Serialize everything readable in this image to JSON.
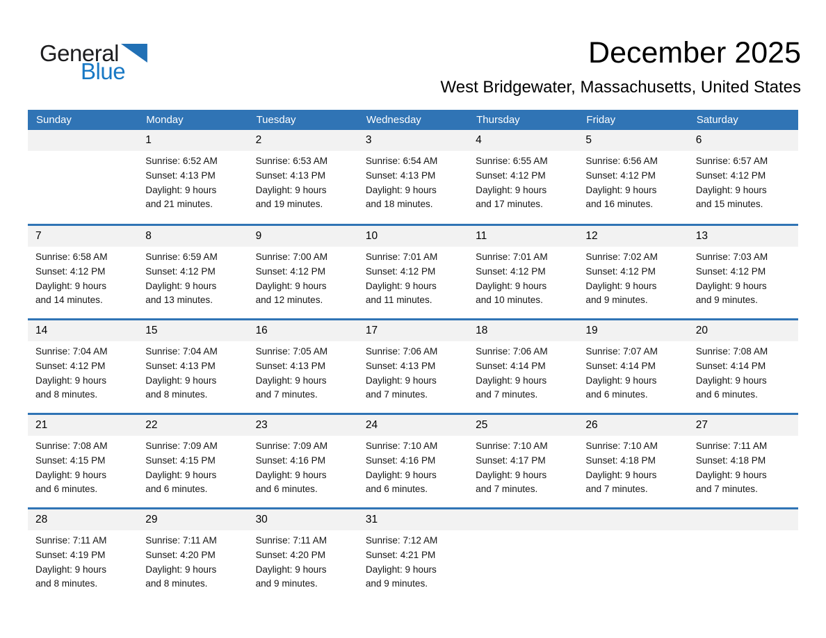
{
  "logo": {
    "general": "General",
    "blue": "Blue"
  },
  "header": {
    "title": "December 2025",
    "subtitle": "West Bridgewater, Massachusetts, United States"
  },
  "colors": {
    "header_blue": "#3074B5",
    "band_gray": "#F2F2F2",
    "logo_blue": "#1878C4",
    "triangle_blue": "#2170B5"
  },
  "calendar": {
    "weekdays": [
      "Sunday",
      "Monday",
      "Tuesday",
      "Wednesday",
      "Thursday",
      "Friday",
      "Saturday"
    ],
    "labels": {
      "sunrise": "Sunrise:",
      "sunset": "Sunset:",
      "daylight": "Daylight:"
    },
    "weeks": [
      [
        null,
        {
          "day": "1",
          "sunrise": "6:52 AM",
          "sunset": "4:13 PM",
          "daylight": "9 hours",
          "daylight2": "and 21 minutes."
        },
        {
          "day": "2",
          "sunrise": "6:53 AM",
          "sunset": "4:13 PM",
          "daylight": "9 hours",
          "daylight2": "and 19 minutes."
        },
        {
          "day": "3",
          "sunrise": "6:54 AM",
          "sunset": "4:13 PM",
          "daylight": "9 hours",
          "daylight2": "and 18 minutes."
        },
        {
          "day": "4",
          "sunrise": "6:55 AM",
          "sunset": "4:12 PM",
          "daylight": "9 hours",
          "daylight2": "and 17 minutes."
        },
        {
          "day": "5",
          "sunrise": "6:56 AM",
          "sunset": "4:12 PM",
          "daylight": "9 hours",
          "daylight2": "and 16 minutes."
        },
        {
          "day": "6",
          "sunrise": "6:57 AM",
          "sunset": "4:12 PM",
          "daylight": "9 hours",
          "daylight2": "and 15 minutes."
        }
      ],
      [
        {
          "day": "7",
          "sunrise": "6:58 AM",
          "sunset": "4:12 PM",
          "daylight": "9 hours",
          "daylight2": "and 14 minutes."
        },
        {
          "day": "8",
          "sunrise": "6:59 AM",
          "sunset": "4:12 PM",
          "daylight": "9 hours",
          "daylight2": "and 13 minutes."
        },
        {
          "day": "9",
          "sunrise": "7:00 AM",
          "sunset": "4:12 PM",
          "daylight": "9 hours",
          "daylight2": "and 12 minutes."
        },
        {
          "day": "10",
          "sunrise": "7:01 AM",
          "sunset": "4:12 PM",
          "daylight": "9 hours",
          "daylight2": "and 11 minutes."
        },
        {
          "day": "11",
          "sunrise": "7:01 AM",
          "sunset": "4:12 PM",
          "daylight": "9 hours",
          "daylight2": "and 10 minutes."
        },
        {
          "day": "12",
          "sunrise": "7:02 AM",
          "sunset": "4:12 PM",
          "daylight": "9 hours",
          "daylight2": "and 9 minutes."
        },
        {
          "day": "13",
          "sunrise": "7:03 AM",
          "sunset": "4:12 PM",
          "daylight": "9 hours",
          "daylight2": "and 9 minutes."
        }
      ],
      [
        {
          "day": "14",
          "sunrise": "7:04 AM",
          "sunset": "4:12 PM",
          "daylight": "9 hours",
          "daylight2": "and 8 minutes."
        },
        {
          "day": "15",
          "sunrise": "7:04 AM",
          "sunset": "4:13 PM",
          "daylight": "9 hours",
          "daylight2": "and 8 minutes."
        },
        {
          "day": "16",
          "sunrise": "7:05 AM",
          "sunset": "4:13 PM",
          "daylight": "9 hours",
          "daylight2": "and 7 minutes."
        },
        {
          "day": "17",
          "sunrise": "7:06 AM",
          "sunset": "4:13 PM",
          "daylight": "9 hours",
          "daylight2": "and 7 minutes."
        },
        {
          "day": "18",
          "sunrise": "7:06 AM",
          "sunset": "4:14 PM",
          "daylight": "9 hours",
          "daylight2": "and 7 minutes."
        },
        {
          "day": "19",
          "sunrise": "7:07 AM",
          "sunset": "4:14 PM",
          "daylight": "9 hours",
          "daylight2": "and 6 minutes."
        },
        {
          "day": "20",
          "sunrise": "7:08 AM",
          "sunset": "4:14 PM",
          "daylight": "9 hours",
          "daylight2": "and 6 minutes."
        }
      ],
      [
        {
          "day": "21",
          "sunrise": "7:08 AM",
          "sunset": "4:15 PM",
          "daylight": "9 hours",
          "daylight2": "and 6 minutes."
        },
        {
          "day": "22",
          "sunrise": "7:09 AM",
          "sunset": "4:15 PM",
          "daylight": "9 hours",
          "daylight2": "and 6 minutes."
        },
        {
          "day": "23",
          "sunrise": "7:09 AM",
          "sunset": "4:16 PM",
          "daylight": "9 hours",
          "daylight2": "and 6 minutes."
        },
        {
          "day": "24",
          "sunrise": "7:10 AM",
          "sunset": "4:16 PM",
          "daylight": "9 hours",
          "daylight2": "and 6 minutes."
        },
        {
          "day": "25",
          "sunrise": "7:10 AM",
          "sunset": "4:17 PM",
          "daylight": "9 hours",
          "daylight2": "and 7 minutes."
        },
        {
          "day": "26",
          "sunrise": "7:10 AM",
          "sunset": "4:18 PM",
          "daylight": "9 hours",
          "daylight2": "and 7 minutes."
        },
        {
          "day": "27",
          "sunrise": "7:11 AM",
          "sunset": "4:18 PM",
          "daylight": "9 hours",
          "daylight2": "and 7 minutes."
        }
      ],
      [
        {
          "day": "28",
          "sunrise": "7:11 AM",
          "sunset": "4:19 PM",
          "daylight": "9 hours",
          "daylight2": "and 8 minutes."
        },
        {
          "day": "29",
          "sunrise": "7:11 AM",
          "sunset": "4:20 PM",
          "daylight": "9 hours",
          "daylight2": "and 8 minutes."
        },
        {
          "day": "30",
          "sunrise": "7:11 AM",
          "sunset": "4:20 PM",
          "daylight": "9 hours",
          "daylight2": "and 9 minutes."
        },
        {
          "day": "31",
          "sunrise": "7:12 AM",
          "sunset": "4:21 PM",
          "daylight": "9 hours",
          "daylight2": "and 9 minutes."
        },
        null,
        null,
        null
      ]
    ]
  }
}
